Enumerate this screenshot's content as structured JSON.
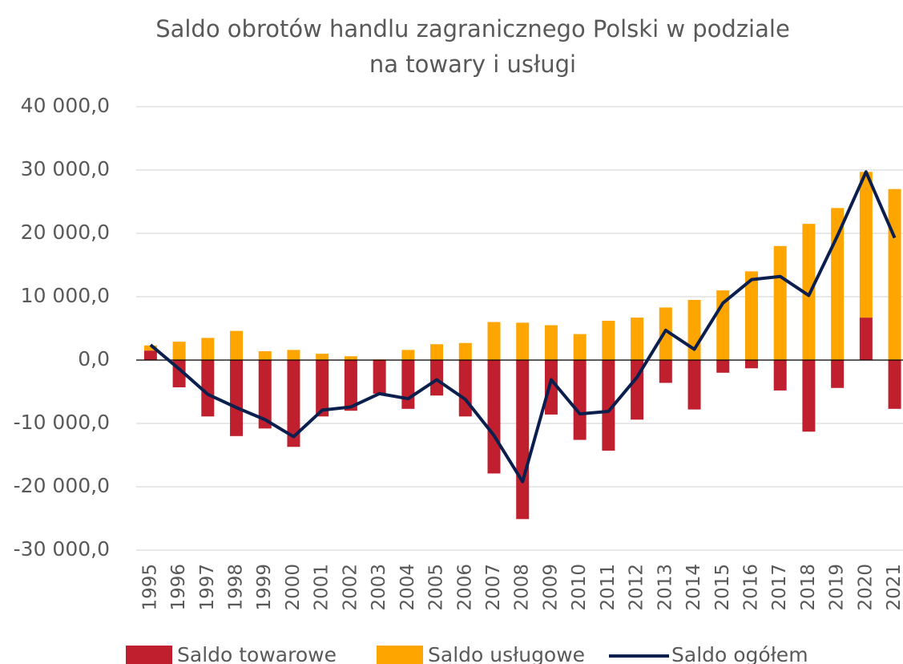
{
  "chart_data": {
    "type": "bar_line",
    "title": "Saldo obrotów handlu zagranicznego Polski w podziale na towary i usługi",
    "categories": [
      "1995",
      "1996",
      "1997",
      "1998",
      "1999",
      "2000",
      "2001",
      "2002",
      "2003",
      "2004",
      "2005",
      "2006",
      "2007",
      "2008",
      "2009",
      "2010",
      "2011",
      "2012",
      "2013",
      "2014",
      "2015",
      "2016",
      "2017",
      "2018",
      "2019",
      "2020",
      "2021"
    ],
    "series": [
      {
        "name": "Saldo towarowe",
        "type": "bar",
        "color": "#c0202e",
        "values": [
          1500,
          -4300,
          -8900,
          -12000,
          -10800,
          -13700,
          -8900,
          -8000,
          -5300,
          -7700,
          -5600,
          -8900,
          -17900,
          -25100,
          -8600,
          -12600,
          -14300,
          -9400,
          -3600,
          -7800,
          -2000,
          -1300,
          -4800,
          -11300,
          -4400,
          6700,
          -7700
        ]
      },
      {
        "name": "Saldo usługowe",
        "type": "bar",
        "color": "#ffa500",
        "values": [
          800,
          2900,
          3500,
          4600,
          1400,
          1600,
          1000,
          600,
          100,
          1600,
          2500,
          2700,
          6000,
          5900,
          5500,
          4100,
          6200,
          6700,
          8300,
          9500,
          11000,
          14000,
          18000,
          21500,
          24000,
          23000,
          27000
        ]
      },
      {
        "name": "Saldo ogółem",
        "type": "line",
        "color": "#0b1f4f",
        "values": [
          2400,
          -1400,
          -5400,
          -7500,
          -9400,
          -12100,
          -7900,
          -7400,
          -5300,
          -6100,
          -3100,
          -6200,
          -11900,
          -19200,
          -3100,
          -8500,
          -8100,
          -2700,
          4700,
          1700,
          9000,
          12700,
          13200,
          10200,
          19600,
          29700,
          19300
        ]
      }
    ],
    "ylim": [
      -30000,
      40000
    ],
    "yticks": [
      {
        "value": -30000,
        "label": "-30 000,0"
      },
      {
        "value": -20000,
        "label": "-20 000,0"
      },
      {
        "value": -10000,
        "label": "-10 000,0"
      },
      {
        "value": 0,
        "label": "0,0"
      },
      {
        "value": 10000,
        "label": "10 000,0"
      },
      {
        "value": 20000,
        "label": "20 000,0"
      },
      {
        "value": 30000,
        "label": "30 000,0"
      },
      {
        "value": 40000,
        "label": "40 000,0"
      }
    ],
    "grid": true,
    "legend": "bottom"
  }
}
